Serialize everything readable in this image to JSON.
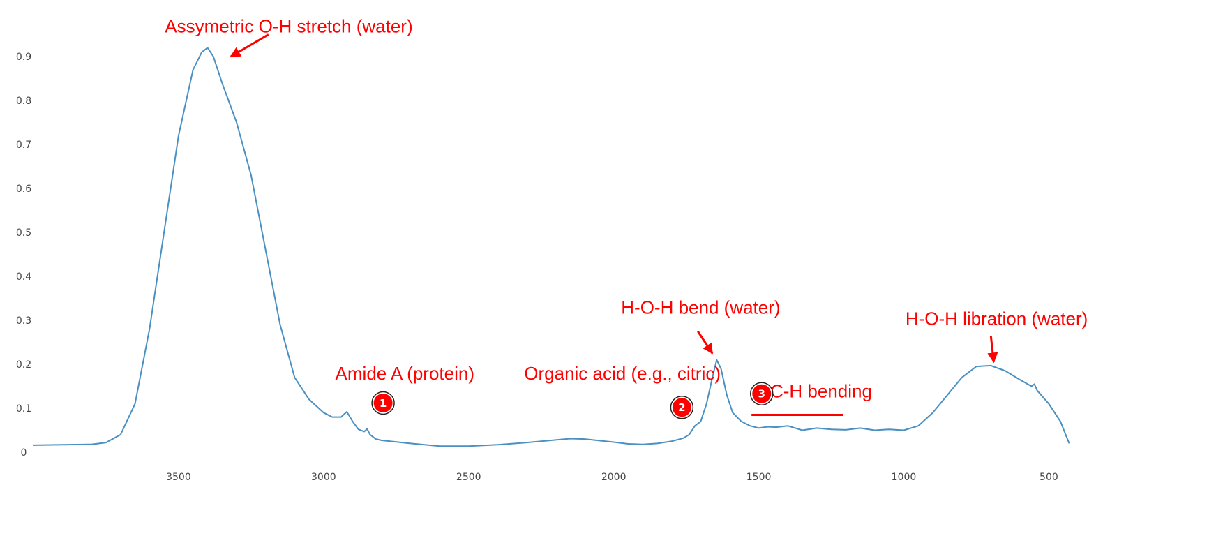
{
  "chart_data": {
    "type": "line",
    "title": "",
    "xlabel": "",
    "ylabel": "",
    "x_reversed": true,
    "xlim": [
      4000,
      400
    ],
    "ylim": [
      0,
      0.96
    ],
    "x_ticks": [
      "3500",
      "3000",
      "2500",
      "2000",
      "1500",
      "1000",
      "500"
    ],
    "x_tick_values": [
      3500,
      3000,
      2500,
      2000,
      1500,
      1000,
      500
    ],
    "y_ticks": [
      "0",
      "0.1",
      "0.2",
      "0.3",
      "0.4",
      "0.5",
      "0.6",
      "0.7",
      "0.8",
      "0.9"
    ],
    "y_tick_values": [
      0,
      0.1,
      0.2,
      0.3,
      0.4,
      0.5,
      0.6,
      0.7,
      0.8,
      0.9
    ],
    "grid": false,
    "series": [
      {
        "color": "#4a90c2",
        "x": [
          4000,
          3900,
          3800,
          3750,
          3700,
          3650,
          3600,
          3550,
          3500,
          3450,
          3420,
          3400,
          3380,
          3350,
          3300,
          3250,
          3200,
          3150,
          3100,
          3050,
          3000,
          2970,
          2940,
          2920,
          2900,
          2880,
          2860,
          2850,
          2840,
          2820,
          2800,
          2700,
          2600,
          2500,
          2400,
          2300,
          2200,
          2150,
          2100,
          2000,
          1950,
          1900,
          1850,
          1800,
          1760,
          1740,
          1720,
          1700,
          1680,
          1660,
          1645,
          1630,
          1610,
          1590,
          1560,
          1530,
          1500,
          1470,
          1440,
          1400,
          1350,
          1300,
          1250,
          1200,
          1150,
          1100,
          1050,
          1000,
          950,
          900,
          850,
          800,
          750,
          700,
          650,
          600,
          560,
          550,
          540,
          500,
          460,
          430
        ],
        "y": [
          0.016,
          0.017,
          0.018,
          0.022,
          0.04,
          0.11,
          0.28,
          0.5,
          0.72,
          0.87,
          0.91,
          0.92,
          0.9,
          0.84,
          0.75,
          0.63,
          0.46,
          0.29,
          0.17,
          0.12,
          0.09,
          0.08,
          0.08,
          0.092,
          0.07,
          0.052,
          0.047,
          0.053,
          0.04,
          0.03,
          0.027,
          0.02,
          0.014,
          0.014,
          0.017,
          0.022,
          0.028,
          0.031,
          0.03,
          0.023,
          0.019,
          0.018,
          0.02,
          0.025,
          0.032,
          0.04,
          0.06,
          0.07,
          0.11,
          0.17,
          0.21,
          0.19,
          0.13,
          0.09,
          0.07,
          0.06,
          0.055,
          0.058,
          0.057,
          0.06,
          0.05,
          0.055,
          0.052,
          0.051,
          0.055,
          0.05,
          0.052,
          0.05,
          0.06,
          0.09,
          0.13,
          0.17,
          0.195,
          0.197,
          0.185,
          0.165,
          0.15,
          0.155,
          0.14,
          0.11,
          0.07,
          0.02
        ]
      }
    ],
    "annotations": [
      {
        "text": "Assymetric O-H stretch (water)",
        "x": 3120,
        "y": 0.955,
        "arrow_from": [
          3190,
          0.95
        ],
        "arrow_to": [
          3320,
          0.9
        ]
      },
      {
        "text": "Amide A (protein)",
        "x": 2720,
        "y": 0.165,
        "arrow_from": null,
        "arrow_to": null
      },
      {
        "text": "Organic acid (e.g., citric)",
        "x": 1970,
        "y": 0.165,
        "arrow_from": null,
        "arrow_to": null
      },
      {
        "text": "H-O-H bend (water)",
        "x": 1700,
        "y": 0.315,
        "arrow_from": [
          1710,
          0.275
        ],
        "arrow_to": [
          1660,
          0.225
        ]
      },
      {
        "text": "H-O-H libration (water)",
        "x": 680,
        "y": 0.29,
        "arrow_from": [
          700,
          0.265
        ],
        "arrow_to": [
          690,
          0.205
        ]
      },
      {
        "text": "C-H bending",
        "x": 1285,
        "y": 0.125,
        "arrow_from": null,
        "arrow_to": null
      }
    ],
    "badges": [
      {
        "label": "1",
        "x": 2795,
        "y": 0.112
      },
      {
        "label": "2",
        "x": 1765,
        "y": 0.102
      },
      {
        "label": "3",
        "x": 1490,
        "y": 0.133
      }
    ],
    "range_line": {
      "x_start": 1525,
      "x_end": 1210,
      "y": 0.085
    },
    "annotation_color": "#ff0000"
  }
}
